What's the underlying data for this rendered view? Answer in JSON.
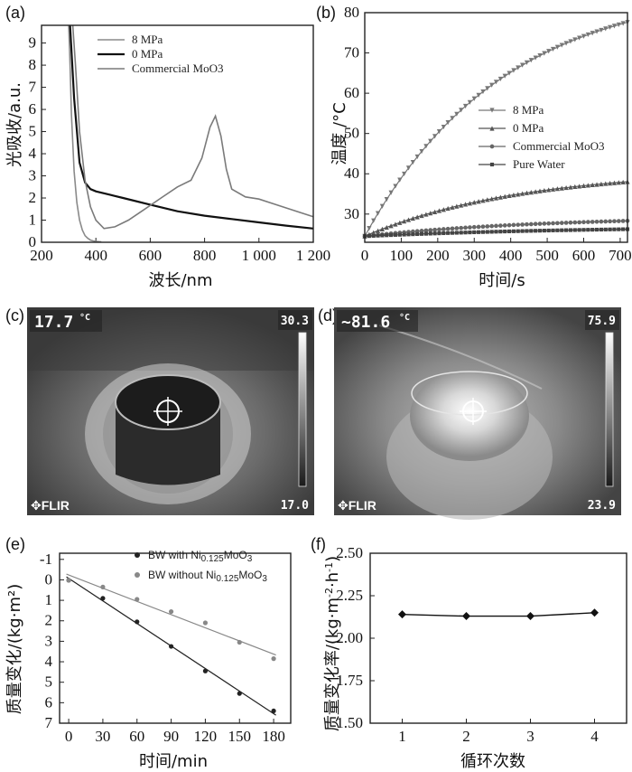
{
  "panels": {
    "a": "(a)",
    "b": "(b)",
    "c": "(c)",
    "d": "(d)",
    "e": "(e)",
    "f": "(f)"
  },
  "chart_data": [
    {
      "id": "a",
      "type": "line",
      "xlabel": "波长/nm",
      "ylabel": "光吸收/a.u.",
      "xlim": [
        200,
        1200
      ],
      "ylim": [
        0,
        9.8
      ],
      "xticks": [
        "200",
        "400",
        "600",
        "800",
        "1 000",
        "1 200"
      ],
      "yticks": [
        "0",
        "1",
        "2",
        "3",
        "4",
        "5",
        "6",
        "7",
        "8",
        "9"
      ],
      "legend": [
        "8 MPa",
        "0 MPa",
        "Commercial MoO3"
      ],
      "series": [
        {
          "name": "8 MPa",
          "color": "#8a8a8a",
          "width": 1.6,
          "x": [
            300,
            305,
            310,
            320,
            330,
            340,
            350,
            360,
            370,
            380,
            390,
            400,
            410,
            420
          ],
          "y": [
            9.8,
            8.0,
            5.8,
            3.2,
            1.8,
            1.0,
            0.55,
            0.3,
            0.18,
            0.1,
            0.06,
            0.04,
            0.03,
            0.02
          ]
        },
        {
          "name": "0 MPa",
          "color": "#111111",
          "width": 2.2,
          "x": [
            305,
            320,
            340,
            360,
            380,
            400,
            450,
            500,
            600,
            700,
            800,
            900,
            1000,
            1100,
            1200
          ],
          "y": [
            9.8,
            6.5,
            3.6,
            2.7,
            2.4,
            2.3,
            2.15,
            2.0,
            1.7,
            1.4,
            1.2,
            1.05,
            0.9,
            0.75,
            0.62
          ]
        },
        {
          "name": "Commercial MoO3",
          "color": "#7a7a7a",
          "width": 1.6,
          "x": [
            315,
            325,
            340,
            360,
            380,
            400,
            430,
            470,
            520,
            580,
            640,
            700,
            750,
            790,
            820,
            840,
            860,
            880,
            900,
            950,
            1000,
            1050,
            1100,
            1150,
            1200
          ],
          "y": [
            9.8,
            8.0,
            5.0,
            2.8,
            1.6,
            1.0,
            0.62,
            0.7,
            1.0,
            1.5,
            2.0,
            2.5,
            2.8,
            3.8,
            5.2,
            5.7,
            4.8,
            3.3,
            2.4,
            2.05,
            1.95,
            1.75,
            1.55,
            1.35,
            1.15
          ]
        }
      ]
    },
    {
      "id": "b",
      "type": "line",
      "xlabel": "时间/s",
      "ylabel": "温度 /°C",
      "xlim": [
        0,
        720
      ],
      "ylim": [
        23,
        80
      ],
      "xticks": [
        "0",
        "100",
        "200",
        "300",
        "400",
        "500",
        "600",
        "700"
      ],
      "yticks": [
        "30",
        "40",
        "50",
        "60",
        "70",
        "80"
      ],
      "legend": [
        "8 MPa",
        "0 MPa",
        "Commercial MoO3",
        "Pure Water"
      ],
      "series": [
        {
          "name": "8 MPa",
          "marker": "tri-down",
          "color": "#777",
          "asymptote": 87,
          "start": 24.5,
          "tau": 380
        },
        {
          "name": "0 MPa",
          "marker": "tri-up",
          "color": "#555",
          "asymptote": 41,
          "start": 24.5,
          "tau": 420
        },
        {
          "name": "Commercial MoO3",
          "marker": "circle",
          "color": "#666",
          "asymptote": 29.5,
          "start": 24.5,
          "tau": 500
        },
        {
          "name": "Pure Water",
          "marker": "square",
          "color": "#444",
          "asymptote": 27.0,
          "start": 24.5,
          "tau": 600
        }
      ]
    },
    {
      "id": "e",
      "type": "scatter",
      "xlabel": "时间/min",
      "ylabel": "质量变化/(kg·m²)",
      "xlim": [
        -8,
        195
      ],
      "ylim": [
        -1.3,
        7
      ],
      "y_inverted": true,
      "xticks": [
        "0",
        "30",
        "60",
        "90",
        "120",
        "150",
        "180"
      ],
      "yticks": [
        "-1",
        "0",
        "1",
        "2",
        "3",
        "4",
        "5",
        "6",
        "7"
      ],
      "series": [
        {
          "name": "BW with Ni0.125MoO3",
          "color": "#222",
          "x": [
            0,
            30,
            60,
            90,
            120,
            150,
            180
          ],
          "y": [
            0.02,
            0.9,
            2.05,
            3.25,
            4.45,
            5.55,
            6.4
          ]
        },
        {
          "name": "BW without Ni0.125MoO3",
          "color": "#888",
          "x": [
            0,
            30,
            60,
            90,
            120,
            150,
            180
          ],
          "y": [
            0.02,
            0.35,
            0.95,
            1.55,
            2.1,
            3.05,
            3.85
          ]
        }
      ]
    },
    {
      "id": "f",
      "type": "line",
      "xlabel": "循环次数",
      "ylabel": "质量变化率/(kg·m-2·h-1)",
      "xlim": [
        0.5,
        4.5
      ],
      "ylim": [
        1.5,
        2.5
      ],
      "xticks": [
        "1",
        "2",
        "3",
        "4"
      ],
      "yticks": [
        "1.50",
        "1.75",
        "2.00",
        "2.25",
        "2.50"
      ],
      "series": [
        {
          "name": "",
          "color": "#111",
          "x": [
            1,
            2,
            3,
            4
          ],
          "y": [
            2.14,
            2.13,
            2.13,
            2.15
          ]
        }
      ]
    }
  ],
  "thermal_images": {
    "c": {
      "temp": "17.7",
      "unit": "°C",
      "max": "30.3",
      "min": "17.0",
      "brand": "FLIR"
    },
    "d": {
      "temp": "~81.6",
      "unit": "°C",
      "max": "75.9",
      "min": "23.9",
      "brand": "FLIR"
    }
  }
}
